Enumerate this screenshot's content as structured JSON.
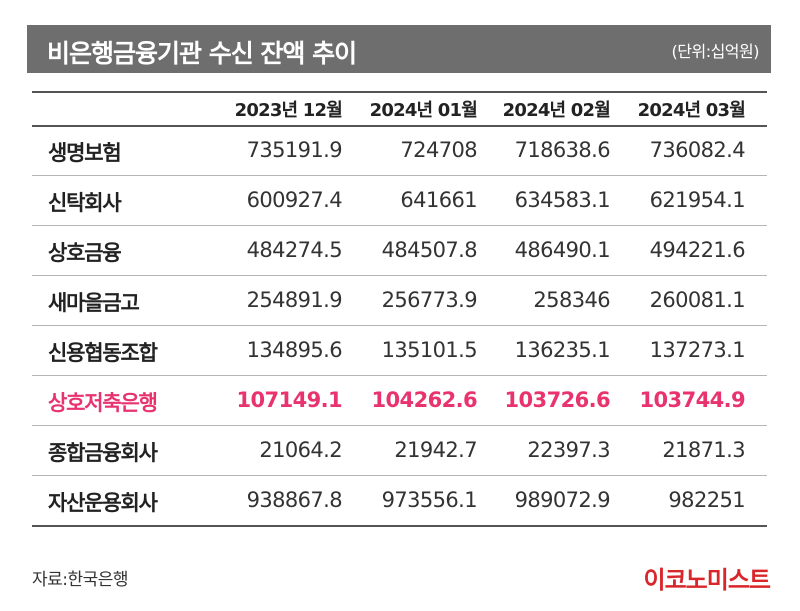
{
  "header": {
    "title": "비은행금융기관 수신 잔액 추이",
    "unit": "(단위:십억원)"
  },
  "chart_data": {
    "type": "table",
    "title": "비은행금융기관 수신 잔액 추이",
    "unit": "(단위:십억원)",
    "columns": [
      "2023년 12월",
      "2024년 01월",
      "2024년 02월",
      "2024년 03월"
    ],
    "rows": [
      {
        "label": "생명보험",
        "values": [
          "735191.9",
          "724708",
          "718638.6",
          "736082.4"
        ]
      },
      {
        "label": "신탁회사",
        "values": [
          "600927.4",
          "641661",
          "634583.1",
          "621954.1"
        ]
      },
      {
        "label": "상호금융",
        "values": [
          "484274.5",
          "484507.8",
          "486490.1",
          "494221.6"
        ]
      },
      {
        "label": "새마을금고",
        "values": [
          "254891.9",
          "256773.9",
          "258346",
          "260081.1"
        ]
      },
      {
        "label": "신용협동조합",
        "values": [
          "134895.6",
          "135101.5",
          "136235.1",
          "137273.1"
        ]
      },
      {
        "label": "상호저축은행",
        "values": [
          "107149.1",
          "104262.6",
          "103726.6",
          "103744.9"
        ],
        "highlight": true
      },
      {
        "label": "종합금융회사",
        "values": [
          "21064.2",
          "21942.7",
          "22397.3",
          "21871.3"
        ]
      },
      {
        "label": "자산운용회사",
        "values": [
          "938867.8",
          "973556.1",
          "989072.9",
          "982251"
        ]
      }
    ],
    "highlight_color": "#e8336f"
  },
  "footer": {
    "source": "자료:한국은행",
    "logo": "이코노미스트"
  }
}
